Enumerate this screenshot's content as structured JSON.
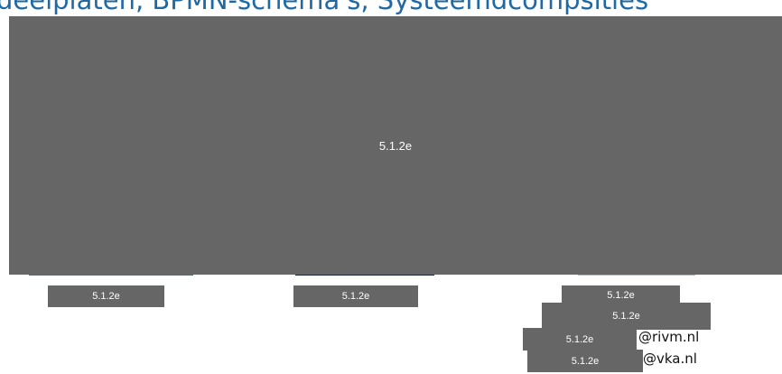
{
  "title": "deelplaten, BPMN-schema's, Systeemdcompsities",
  "redactions": {
    "main": "5.1.2e",
    "left_name": "5.1.2e",
    "middle_name": "5.1.2e",
    "right_name_1": "5.1.2e",
    "right_name_2": "5.1.2e",
    "email_1_user": "5.1.2e",
    "email_2_user": "5.1.2e"
  },
  "emails": {
    "email_1_domain": "@rivm.nl",
    "email_2_domain": "@vka.nl"
  }
}
